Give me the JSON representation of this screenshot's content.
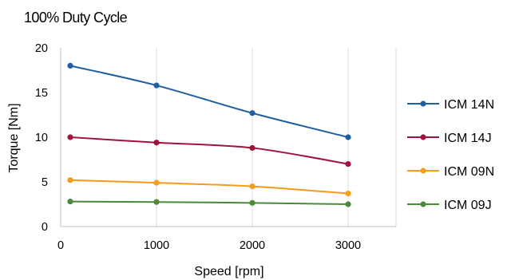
{
  "chart_data": {
    "type": "line",
    "title": "100% Duty Cycle",
    "xlabel": "Speed [rpm]",
    "ylabel": "Torque [Nm]",
    "xlim": [
      0,
      3500
    ],
    "ylim": [
      0,
      20
    ],
    "xticks": [
      0,
      1000,
      2000,
      3000
    ],
    "yticks": [
      0,
      5,
      10,
      15,
      20
    ],
    "grid": {
      "vertical": true,
      "horizontal": false
    },
    "legend_position": "right",
    "x": [
      100,
      1000,
      2000,
      3000
    ],
    "series": [
      {
        "name": "ICM 14N",
        "color": "#1f5fa0",
        "values": [
          18.0,
          15.8,
          12.7,
          10.0
        ]
      },
      {
        "name": "ICM 14J",
        "color": "#a0133a",
        "values": [
          10.0,
          9.4,
          8.8,
          7.0
        ]
      },
      {
        "name": "ICM 09N",
        "color": "#f59c1a",
        "values": [
          5.2,
          4.9,
          4.5,
          3.7
        ]
      },
      {
        "name": "ICM 09J",
        "color": "#4a8a3a",
        "values": [
          2.8,
          2.75,
          2.65,
          2.5
        ]
      }
    ]
  }
}
